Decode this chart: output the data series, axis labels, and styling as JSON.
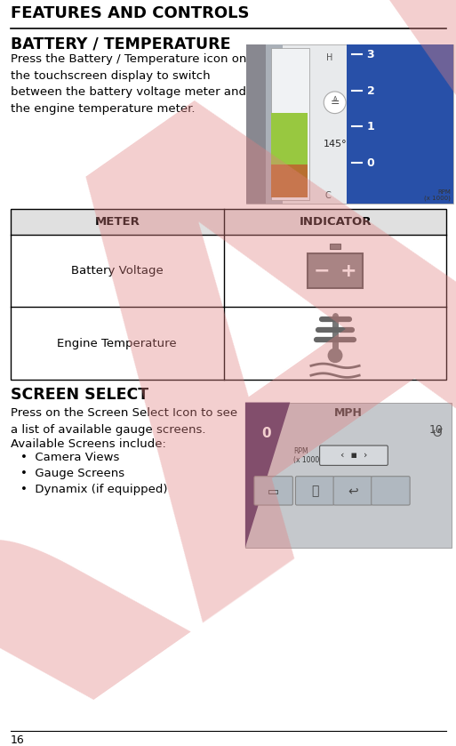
{
  "page_width": 6.63,
  "page_height": 10.86,
  "bg_color": "#ffffff",
  "header_text": "FEATURES AND CONTROLS",
  "header_fontsize": 13,
  "header_color": "#000000",
  "draft_watermark": "DRAFT",
  "draft_color": "#e08080",
  "draft_alpha": 0.38,
  "section1_title": "BATTERY / TEMPERATURE",
  "section1_title_fontsize": 12.5,
  "section1_body": "Press the Battery / Temperature icon on\nthe touchscreen display to switch\nbetween the battery voltage meter and\nthe engine temperature meter.",
  "section1_body_fontsize": 9.5,
  "table_header_meter": "METER",
  "table_header_indicator": "INDICATOR",
  "table_header_fontsize": 9.5,
  "table_row1_meter": "Battery Voltage",
  "table_row2_meter": "Engine Temperature",
  "table_cell_fontsize": 9.5,
  "section2_title": "SCREEN SELECT",
  "section2_title_fontsize": 12.5,
  "section2_body1": "Press on the Screen Select Icon to see\na list of available gauge screens.",
  "section2_body2": "Available Screens include:",
  "section2_bullets": [
    "Camera Views",
    "Gauge Screens",
    "Dynamix (if equipped)"
  ],
  "section2_body_fontsize": 9.5,
  "footer_text": "16",
  "footer_fontsize": 9,
  "table_header_bg": "#e0e0e0",
  "table_border_color": "#000000",
  "line_color": "#000000",
  "gauge_bg": "#e8eaec",
  "gauge_gray_strip": "#888890",
  "gauge_light_bg": "#d0d5da",
  "gauge_green": "#98c840",
  "gauge_orange": "#b87030",
  "gauge_blue": "#2850a8",
  "screen_bg": "#c5c8cc",
  "screen_dark": "#4a3060"
}
